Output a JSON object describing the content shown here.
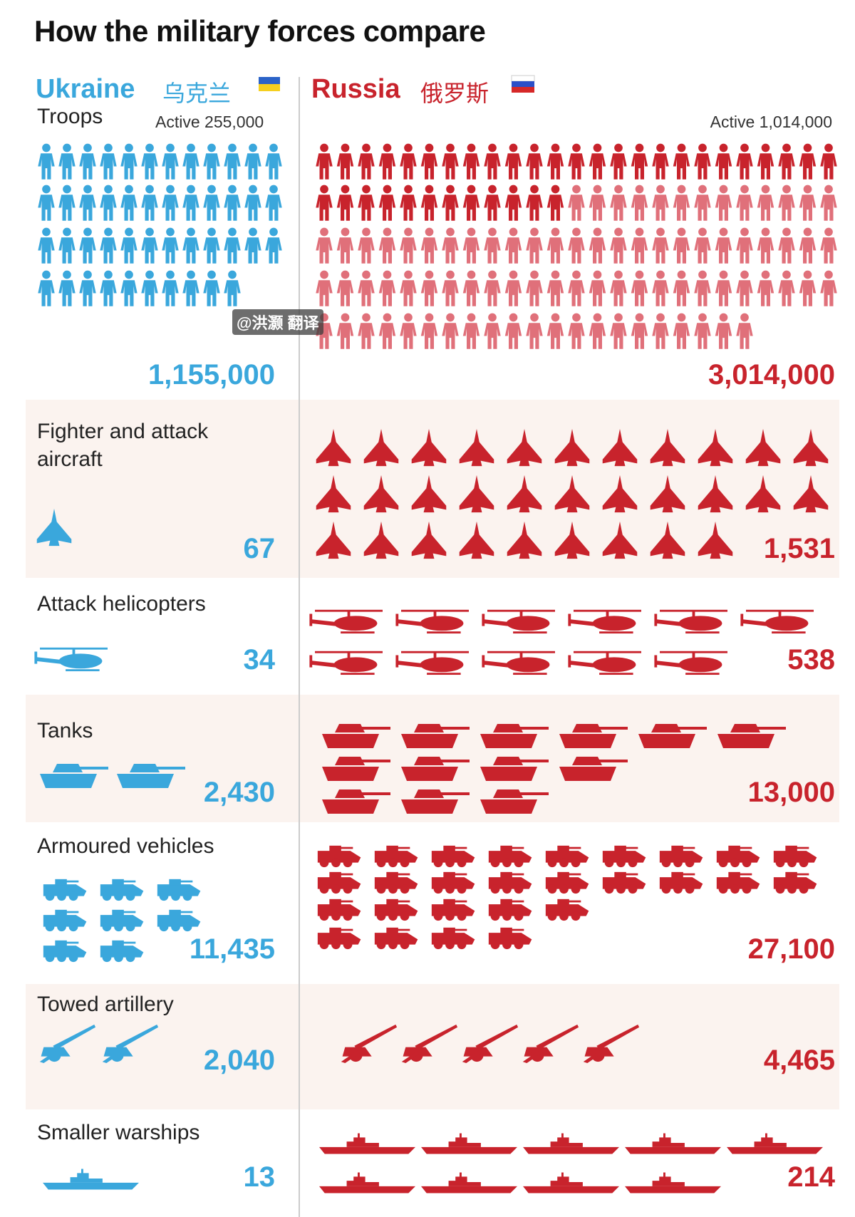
{
  "title": "How the military forces compare",
  "countries": [
    {
      "name": "Ukraine",
      "name_zh": "乌克兰"
    },
    {
      "name": "Russia",
      "name_zh": "俄罗斯"
    }
  ],
  "watermark": "@洪灏 翻译",
  "rows": [
    {
      "label": "Troops",
      "annotations": [
        "Active 255,000",
        "Active 1,014,000"
      ],
      "values": [
        "1,155,000",
        "3,014,000"
      ]
    },
    {
      "label": "Fighter and attack aircraft",
      "values": [
        "67",
        "1,531"
      ]
    },
    {
      "label": "Attack helicopters",
      "values": [
        "34",
        "538"
      ]
    },
    {
      "label": "Tanks",
      "values": [
        "2,430",
        "13,000"
      ]
    },
    {
      "label": "Armoured vehicles",
      "values": [
        "11,435",
        "27,100"
      ]
    },
    {
      "label": "Towed artillery",
      "values": [
        "2,040",
        "4,465"
      ]
    },
    {
      "label": "Smaller warships",
      "values": [
        "13",
        "214"
      ]
    }
  ]
}
